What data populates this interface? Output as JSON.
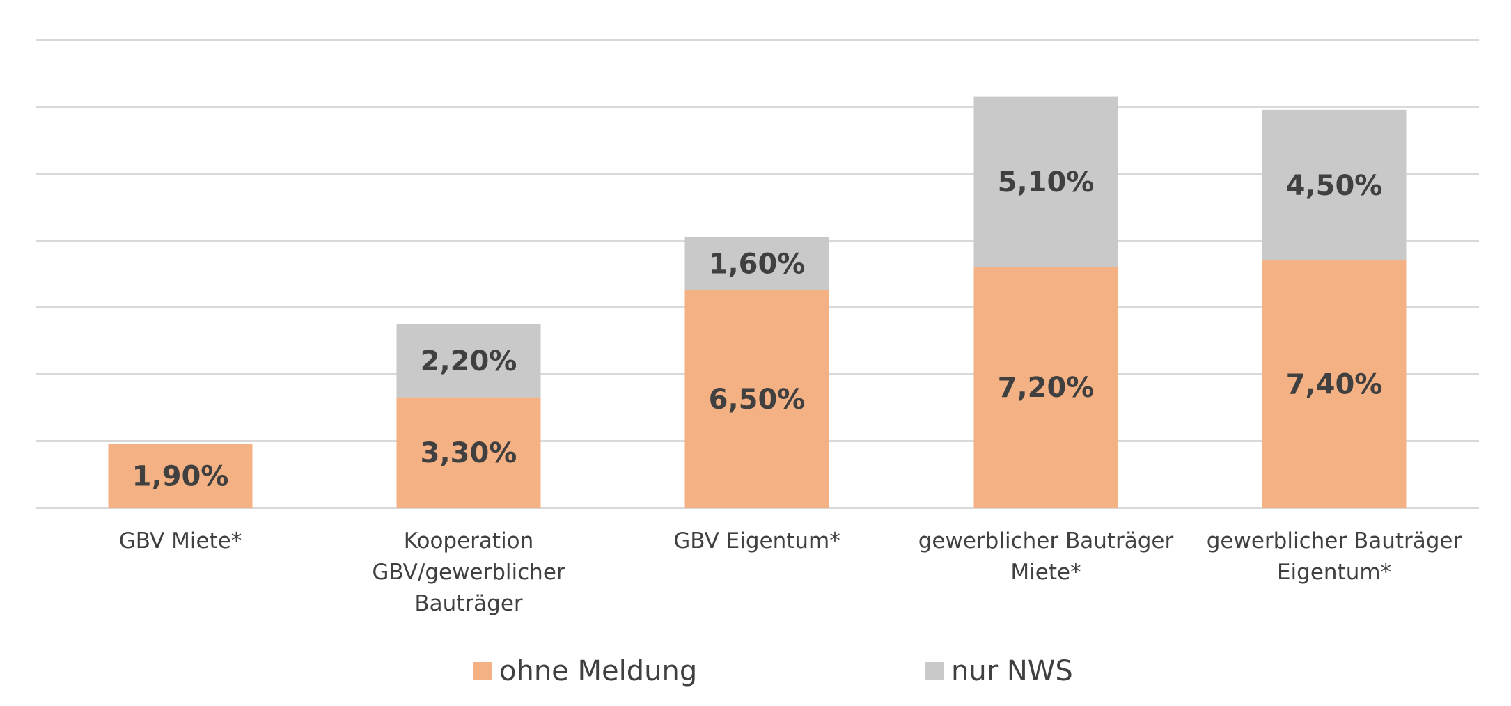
{
  "chart_data": {
    "type": "bar",
    "stacked": true,
    "categories": [
      [
        "GBV Miete*"
      ],
      [
        "Kooperation",
        "GBV/gewerblicher",
        "Bauträger"
      ],
      [
        "GBV Eigentum*"
      ],
      [
        "gewerblicher Bauträger",
        "Miete*"
      ],
      [
        "gewerblicher Bauträger",
        "Eigentum*"
      ]
    ],
    "series": [
      {
        "name": "ohne Meldung",
        "color": "#F4B183",
        "values": [
          1.9,
          3.3,
          6.5,
          7.2,
          7.4
        ],
        "labels": [
          "1,90%",
          "3,30%",
          "6,50%",
          "7,20%",
          "7,40%"
        ]
      },
      {
        "name": "nur NWS",
        "color": "#C9C9C9",
        "values": [
          0,
          2.2,
          1.6,
          5.1,
          4.5
        ],
        "labels": [
          "",
          "2,20%",
          "1,60%",
          "5,10%",
          "4,50%"
        ]
      }
    ],
    "ylim": [
      0,
      14
    ],
    "ytick_step": 2,
    "grid": true,
    "gridline_color": "#D9D9D9",
    "legend": "bottom",
    "title": "",
    "xlabel": "",
    "ylabel": ""
  }
}
